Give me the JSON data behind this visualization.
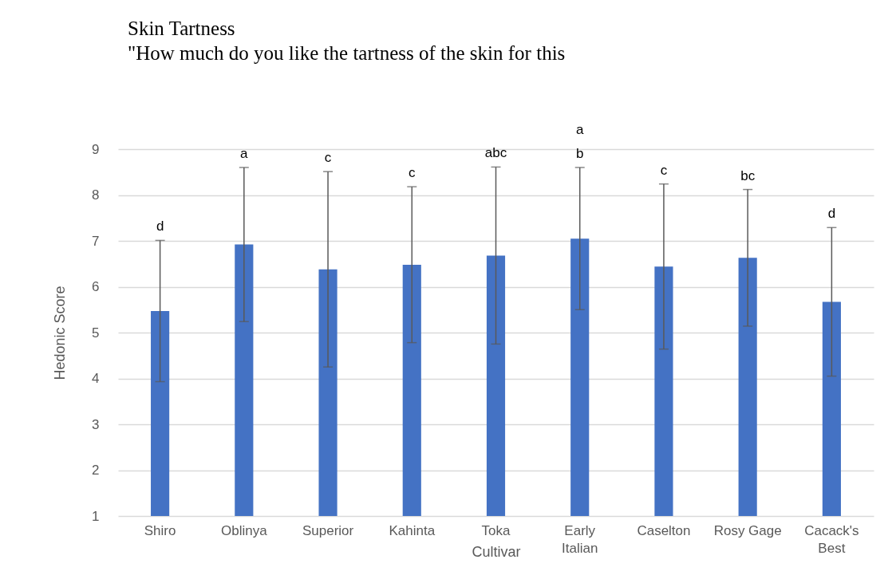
{
  "chart_data": {
    "type": "bar",
    "title": "Skin Tartness",
    "subtitle": "\"How much do you like the tartness of the skin for this",
    "xlabel": "Cultivar",
    "ylabel": "Hedonic Score",
    "categories": [
      "Shiro",
      "Oblinya",
      "Superior",
      "Kahinta",
      "Toka",
      "Early Italian",
      "Caselton",
      "Rosy Gage",
      "Cacack's Best"
    ],
    "values": [
      5.47,
      6.92,
      6.38,
      6.48,
      6.68,
      7.05,
      6.44,
      6.63,
      5.67
    ],
    "errors": [
      1.54,
      1.68,
      2.13,
      1.7,
      1.93,
      1.55,
      1.8,
      1.49,
      1.62
    ],
    "color": "#4472c4",
    "ylim": [
      1,
      9
    ],
    "yticks": [
      1,
      2,
      3,
      4,
      5,
      6,
      7,
      8,
      9
    ],
    "grid": "y",
    "annotations": [
      {
        "text": "d",
        "x": "Shiro",
        "y": 7.01
      },
      {
        "text": "a",
        "x": "Oblinya",
        "y": 8.6
      },
      {
        "text": "c",
        "x": "Superior",
        "y": 8.51
      },
      {
        "text": "c",
        "x": "Kahinta",
        "y": 8.18
      },
      {
        "text": "abc",
        "x": "Toka",
        "y": 8.61
      },
      {
        "text": "a",
        "x": "Early Italian",
        "y": 8.6
      },
      {
        "text": "b",
        "x": "Early Italian",
        "y": 8.6
      },
      {
        "text": "c",
        "x": "Caselton",
        "y": 8.24
      },
      {
        "text": "bc",
        "x": "Rosy Gage",
        "y": 8.12
      },
      {
        "text": "d",
        "x": "Cacack's Best",
        "y": 7.29
      }
    ]
  }
}
